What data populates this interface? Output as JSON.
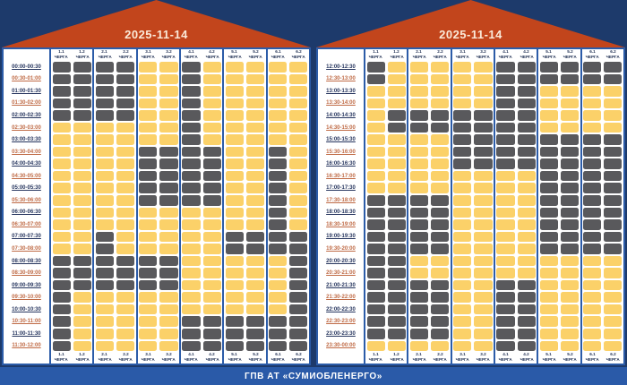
{
  "footer": {
    "label": "ГПВ АТ «СУМИОБЛЕНЕРГО»"
  },
  "colors": {
    "power_on": "#fbd169",
    "power_off": "#59595c",
    "roof": "#c2451c",
    "panel_border": "#2c5ca8",
    "background": "#1d3a6b",
    "footer_bar": "#2a5aa8"
  },
  "chart_data": {
    "type": "heatmap",
    "title": "2025-11-14",
    "queue_word": "ЧЕРГА",
    "columns": [
      "1.1",
      "1.2",
      "2.1",
      "2.2",
      "3.1",
      "3.2",
      "4.1",
      "4.2",
      "5.1",
      "5.2",
      "6.1",
      "6.2"
    ],
    "legend": {
      "1": "power on (yellow)",
      "0": "power off (dark gray)"
    },
    "panels": [
      {
        "date": "2025-11-14",
        "time_slots": [
          "00:00-00:30",
          "00:30-01:00",
          "01:00-01:30",
          "01:30-02:00",
          "02:00-02:30",
          "02:30-03:00",
          "03:00-03:30",
          "03:30-04:00",
          "04:00-04:30",
          "04:30-05:00",
          "05:00-05:30",
          "05:30-06:00",
          "06:00-06:30",
          "06:30-07:00",
          "07:00-07:30",
          "07:30-08:00",
          "08:00-08:30",
          "08:30-09:00",
          "09:00-09:30",
          "09:30-10:00",
          "10:00-10:30",
          "10:30-11:00",
          "11:00-11:30",
          "11:30-12:00"
        ],
        "rows": [
          [
            0,
            0,
            0,
            0,
            1,
            1,
            0,
            1,
            1,
            1,
            1,
            1
          ],
          [
            0,
            0,
            0,
            0,
            1,
            1,
            0,
            1,
            1,
            1,
            1,
            1
          ],
          [
            0,
            0,
            0,
            0,
            1,
            1,
            0,
            1,
            1,
            1,
            1,
            1
          ],
          [
            0,
            0,
            0,
            0,
            1,
            1,
            0,
            1,
            1,
            1,
            1,
            1
          ],
          [
            0,
            0,
            0,
            0,
            1,
            1,
            0,
            1,
            1,
            1,
            1,
            1
          ],
          [
            1,
            1,
            1,
            1,
            1,
            1,
            0,
            1,
            1,
            1,
            1,
            1
          ],
          [
            1,
            1,
            1,
            1,
            1,
            1,
            0,
            1,
            1,
            1,
            1,
            1
          ],
          [
            1,
            1,
            1,
            1,
            0,
            0,
            0,
            0,
            1,
            1,
            0,
            1
          ],
          [
            1,
            1,
            1,
            1,
            0,
            0,
            0,
            0,
            1,
            1,
            0,
            1
          ],
          [
            1,
            1,
            1,
            1,
            0,
            0,
            0,
            0,
            1,
            1,
            0,
            1
          ],
          [
            1,
            1,
            1,
            1,
            0,
            0,
            0,
            0,
            1,
            1,
            0,
            1
          ],
          [
            1,
            1,
            1,
            1,
            0,
            0,
            0,
            0,
            1,
            1,
            0,
            1
          ],
          [
            1,
            1,
            1,
            1,
            1,
            1,
            1,
            1,
            1,
            1,
            0,
            1
          ],
          [
            1,
            1,
            1,
            1,
            1,
            1,
            1,
            1,
            1,
            1,
            0,
            1
          ],
          [
            1,
            1,
            0,
            1,
            1,
            1,
            1,
            1,
            0,
            0,
            0,
            0
          ],
          [
            1,
            1,
            0,
            1,
            1,
            1,
            1,
            1,
            0,
            0,
            0,
            0
          ],
          [
            0,
            0,
            0,
            0,
            0,
            0,
            1,
            1,
            1,
            1,
            1,
            0
          ],
          [
            0,
            0,
            0,
            0,
            0,
            0,
            1,
            1,
            1,
            1,
            1,
            0
          ],
          [
            0,
            0,
            0,
            0,
            0,
            0,
            1,
            1,
            1,
            1,
            1,
            0
          ],
          [
            0,
            1,
            1,
            1,
            1,
            1,
            1,
            1,
            1,
            1,
            1,
            0
          ],
          [
            0,
            1,
            1,
            1,
            1,
            1,
            1,
            1,
            1,
            1,
            1,
            0
          ],
          [
            0,
            1,
            1,
            1,
            1,
            1,
            0,
            0,
            0,
            0,
            0,
            0
          ],
          [
            0,
            1,
            1,
            1,
            1,
            1,
            0,
            0,
            0,
            0,
            0,
            0
          ],
          [
            0,
            1,
            1,
            1,
            1,
            1,
            0,
            0,
            0,
            0,
            0,
            0
          ]
        ]
      },
      {
        "date": "2025-11-14",
        "time_slots": [
          "12:00-12:30",
          "12:30-13:00",
          "13:00-13:30",
          "13:30-14:00",
          "14:00-14:30",
          "14:30-15:00",
          "15:00-15:30",
          "15:30-16:00",
          "16:00-16:30",
          "16:30-17:00",
          "17:00-17:30",
          "17:30-18:00",
          "18:00-18:30",
          "18:30-19:00",
          "19:00-19:30",
          "19:30-20:00",
          "20:00-20:30",
          "20:30-21:00",
          "21:00-21:30",
          "21:30-22:00",
          "22:00-22:30",
          "22:30-23:00",
          "23:00-23:30",
          "23:30-00:00"
        ],
        "rows": [
          [
            0,
            1,
            1,
            1,
            1,
            1,
            0,
            0,
            0,
            0,
            0,
            0
          ],
          [
            0,
            1,
            1,
            1,
            1,
            1,
            0,
            0,
            0,
            0,
            0,
            0
          ],
          [
            1,
            1,
            1,
            1,
            1,
            1,
            0,
            0,
            1,
            1,
            1,
            1
          ],
          [
            1,
            1,
            1,
            1,
            1,
            1,
            0,
            0,
            1,
            1,
            1,
            1
          ],
          [
            1,
            0,
            0,
            0,
            0,
            0,
            0,
            0,
            1,
            1,
            1,
            1
          ],
          [
            1,
            0,
            0,
            0,
            0,
            0,
            0,
            0,
            1,
            1,
            1,
            1
          ],
          [
            1,
            1,
            1,
            1,
            0,
            0,
            0,
            0,
            0,
            0,
            0,
            0
          ],
          [
            1,
            1,
            1,
            1,
            0,
            0,
            0,
            0,
            0,
            0,
            0,
            0
          ],
          [
            1,
            1,
            1,
            1,
            0,
            0,
            0,
            0,
            0,
            0,
            0,
            0
          ],
          [
            1,
            1,
            1,
            1,
            1,
            1,
            1,
            1,
            0,
            0,
            0,
            0
          ],
          [
            1,
            1,
            1,
            1,
            1,
            1,
            1,
            1,
            0,
            0,
            0,
            0
          ],
          [
            0,
            0,
            0,
            0,
            1,
            1,
            1,
            1,
            0,
            0,
            0,
            0
          ],
          [
            0,
            0,
            0,
            0,
            1,
            1,
            1,
            1,
            0,
            0,
            0,
            0
          ],
          [
            0,
            0,
            0,
            0,
            1,
            1,
            1,
            1,
            0,
            0,
            0,
            0
          ],
          [
            0,
            0,
            0,
            0,
            1,
            1,
            1,
            1,
            0,
            0,
            0,
            0
          ],
          [
            0,
            0,
            0,
            0,
            1,
            1,
            1,
            1,
            0,
            0,
            0,
            0
          ],
          [
            0,
            0,
            1,
            1,
            1,
            1,
            1,
            1,
            1,
            1,
            1,
            1
          ],
          [
            0,
            0,
            1,
            1,
            1,
            1,
            1,
            1,
            1,
            1,
            1,
            1
          ],
          [
            0,
            0,
            0,
            0,
            1,
            1,
            0,
            0,
            1,
            1,
            1,
            1
          ],
          [
            0,
            0,
            0,
            0,
            1,
            1,
            0,
            0,
            1,
            1,
            1,
            1
          ],
          [
            0,
            0,
            0,
            0,
            1,
            1,
            0,
            0,
            1,
            1,
            1,
            1
          ],
          [
            0,
            0,
            0,
            0,
            1,
            1,
            0,
            0,
            1,
            1,
            1,
            1
          ],
          [
            0,
            0,
            0,
            0,
            1,
            1,
            0,
            0,
            1,
            1,
            1,
            1
          ],
          [
            1,
            1,
            1,
            1,
            1,
            1,
            0,
            0,
            1,
            1,
            1,
            1
          ]
        ]
      }
    ]
  }
}
